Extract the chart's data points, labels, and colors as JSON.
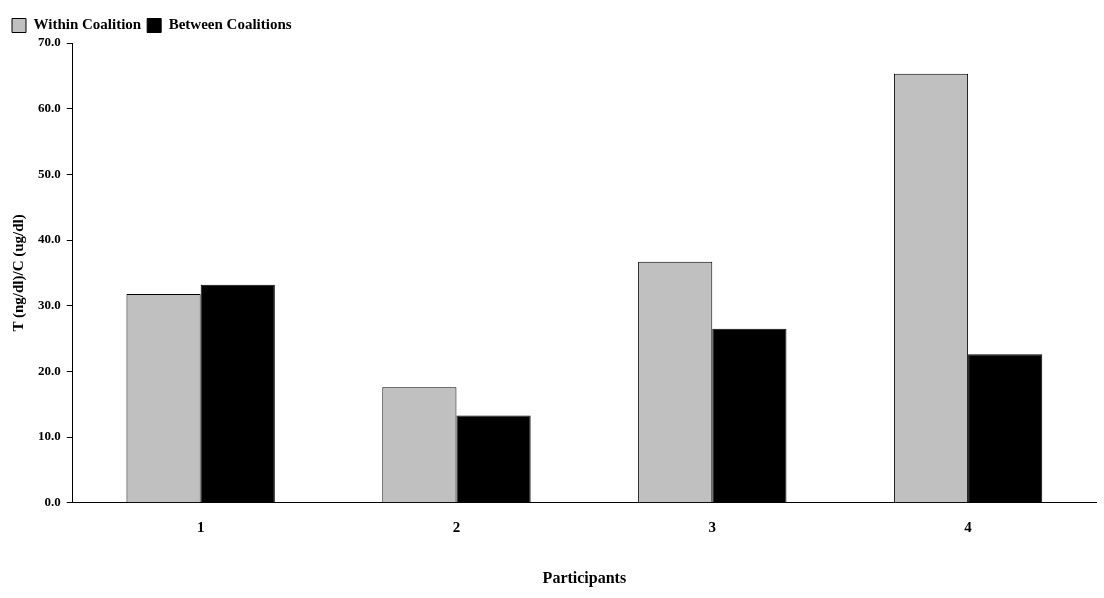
{
  "chart_data": {
    "type": "bar",
    "xlabel": "Participants",
    "ylabel": "T (ng/dl)/C (ug/dl)",
    "categories": [
      "1",
      "2",
      "3",
      "4"
    ],
    "series": [
      {
        "name": "Within Coalition",
        "color": "#c0c0c0",
        "values": [
          31.8,
          17.6,
          36.7,
          65.3
        ]
      },
      {
        "name": "Between Coalitions",
        "color": "#000000",
        "values": [
          33.2,
          13.3,
          26.5,
          22.6
        ]
      }
    ],
    "ylim": [
      0,
      70
    ],
    "yticks": [
      {
        "value": 0,
        "label": "0.0"
      },
      {
        "value": 10,
        "label": "10.0"
      },
      {
        "value": 20,
        "label": "20.0"
      },
      {
        "value": 30,
        "label": "30.0"
      },
      {
        "value": 40,
        "label": "40.0"
      },
      {
        "value": 50,
        "label": "50.0"
      },
      {
        "value": 60,
        "label": "60.0"
      },
      {
        "value": 70,
        "label": "70.0"
      }
    ],
    "grid": false,
    "legend": "top left"
  }
}
